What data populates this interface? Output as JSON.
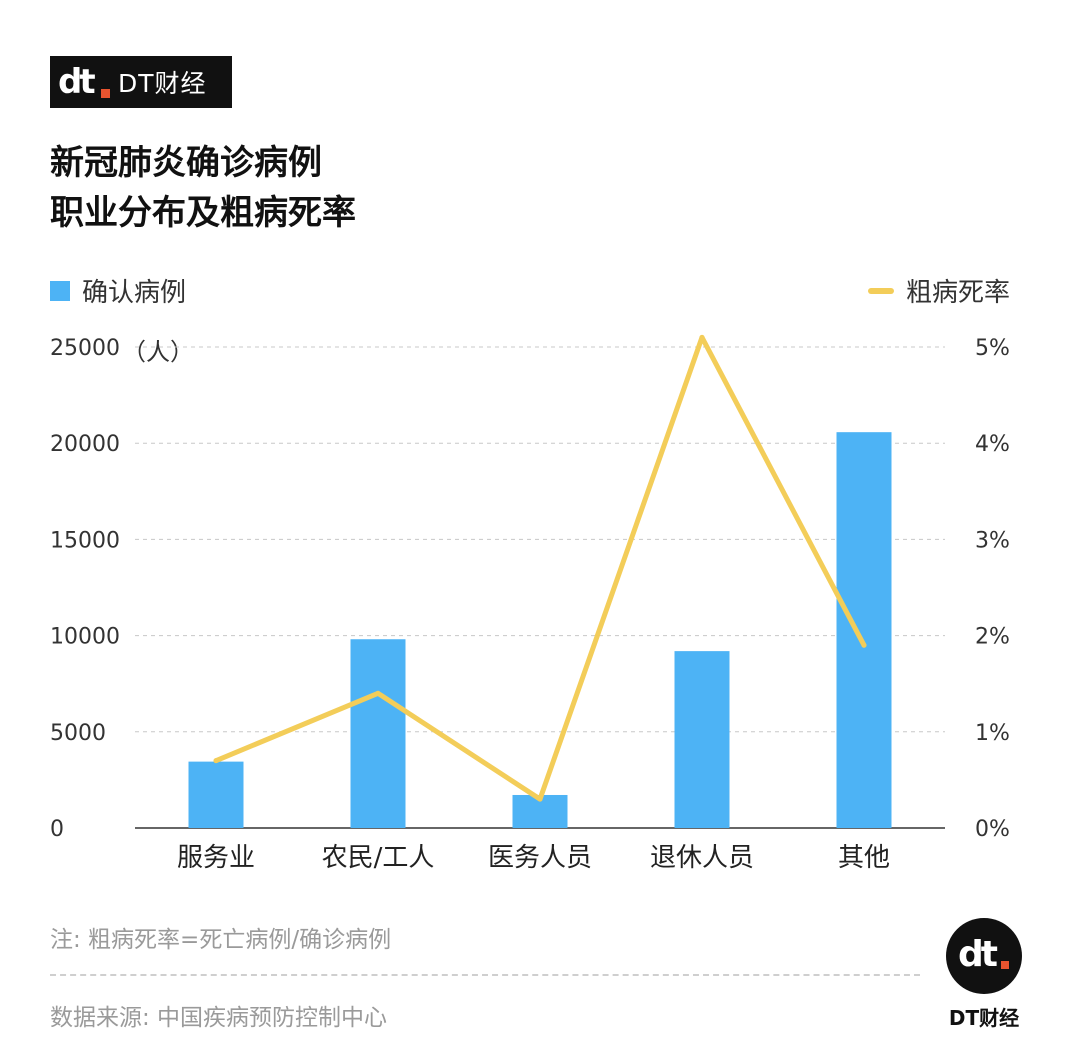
{
  "brand": {
    "logo_text": "dt",
    "name": "DT财经"
  },
  "title": {
    "line1": "新冠肺炎确诊病例",
    "line2": "职业分布及粗病死率"
  },
  "legend": {
    "bar_label": "确认病例",
    "line_label": "粗病死率"
  },
  "unit_label": "（人）",
  "colors": {
    "bar": "#4db3f5",
    "line": "#f3cd59",
    "grid": "#c8c8c8"
  },
  "chart_data": {
    "type": "bar",
    "categories": [
      "服务业",
      "农民/工人",
      "医务人员",
      "退休人员",
      "其他"
    ],
    "series": [
      {
        "name": "确认病例",
        "type": "bar",
        "axis": "left",
        "values": [
          3450,
          9811,
          1716,
          9193,
          20573
        ]
      },
      {
        "name": "粗病死率",
        "type": "line",
        "axis": "right",
        "values": [
          0.7,
          1.4,
          0.3,
          5.1,
          1.9
        ]
      }
    ],
    "left_axis": {
      "ticks": [
        0,
        5000,
        10000,
        15000,
        20000,
        25000
      ],
      "ylim": [
        0,
        25000
      ]
    },
    "right_axis": {
      "ticks": [
        "0%",
        "1%",
        "2%",
        "3%",
        "4%",
        "5%"
      ],
      "ylim": [
        0,
        5
      ]
    },
    "grid": true
  },
  "note": "注: 粗病死率=死亡病例/确诊病例",
  "source": "数据来源: 中国疾病预防控制中心",
  "footer_brand": "DT财经"
}
